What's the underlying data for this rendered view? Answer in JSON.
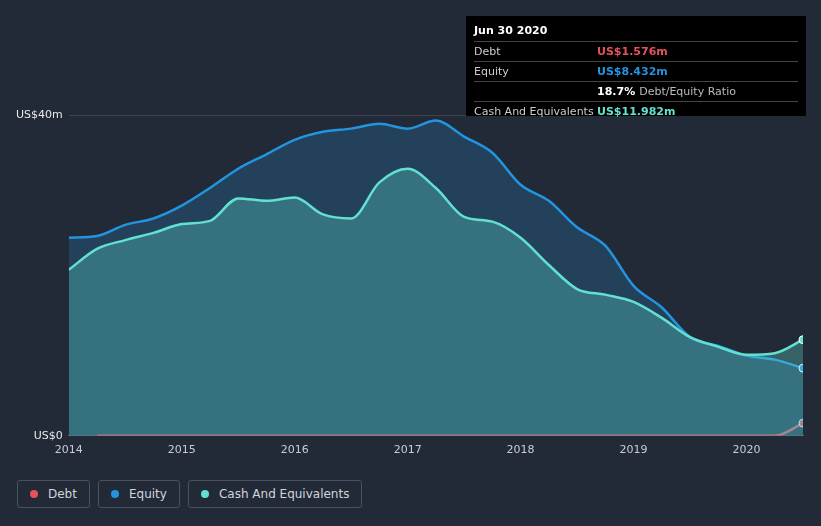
{
  "chart_data": {
    "type": "line",
    "xlim": [
      2014,
      2020.5
    ],
    "xticks": [
      2014,
      2015,
      2016,
      2017,
      2018,
      2019,
      2020
    ],
    "ylim": [
      0,
      40
    ],
    "yticks": [
      {
        "value": 0,
        "label": "US$0"
      },
      {
        "value": 40,
        "label": "US$40m"
      }
    ],
    "grid": true,
    "legend": "bottom-left",
    "x": [
      2014,
      2014.25,
      2014.5,
      2014.75,
      2015,
      2015.25,
      2015.5,
      2015.75,
      2016,
      2016.25,
      2016.5,
      2016.75,
      2017,
      2017.25,
      2017.5,
      2017.75,
      2018,
      2018.25,
      2018.5,
      2018.75,
      2019,
      2019.25,
      2019.5,
      2019.75,
      2020,
      2020.25,
      2020.5
    ],
    "series": [
      {
        "name": "Debt",
        "color": "#e5525d",
        "values": [
          null,
          0,
          0,
          0,
          0,
          0,
          0,
          0,
          0,
          0,
          0,
          0,
          0,
          0,
          0,
          0,
          0,
          0,
          0,
          0,
          0,
          0,
          0,
          0,
          0,
          0,
          1.576
        ]
      },
      {
        "name": "Equity",
        "color": "#2394df",
        "values": [
          24.7,
          24.9,
          26.3,
          27.1,
          28.7,
          30.9,
          33.3,
          35.1,
          36.9,
          37.9,
          38.3,
          38.9,
          38.3,
          39.3,
          37.3,
          35.3,
          31.3,
          29.3,
          26.0,
          23.7,
          18.7,
          16.0,
          12.3,
          11.2,
          10.0,
          9.5,
          8.432
        ]
      },
      {
        "name": "Cash And Equivalents",
        "color": "#63e1d0",
        "values": [
          20.7,
          23.3,
          24.4,
          25.3,
          26.4,
          26.8,
          29.6,
          29.3,
          29.7,
          27.6,
          27.1,
          31.6,
          33.3,
          30.9,
          27.3,
          26.7,
          24.7,
          21.3,
          18.3,
          17.6,
          16.7,
          14.7,
          12.3,
          11.1,
          10.1,
          10.3,
          11.982
        ]
      }
    ],
    "annotation": {
      "title": "Jun 30 2020",
      "rows": [
        {
          "label": "Debt",
          "value": "US$1.576m"
        },
        {
          "label": "Equity",
          "value": "US$8.432m"
        },
        {
          "label": "",
          "value": "18.7%",
          "note": "Debt/Equity Ratio"
        },
        {
          "label": "Cash And Equivalents",
          "value": "US$11.982m"
        }
      ]
    }
  }
}
